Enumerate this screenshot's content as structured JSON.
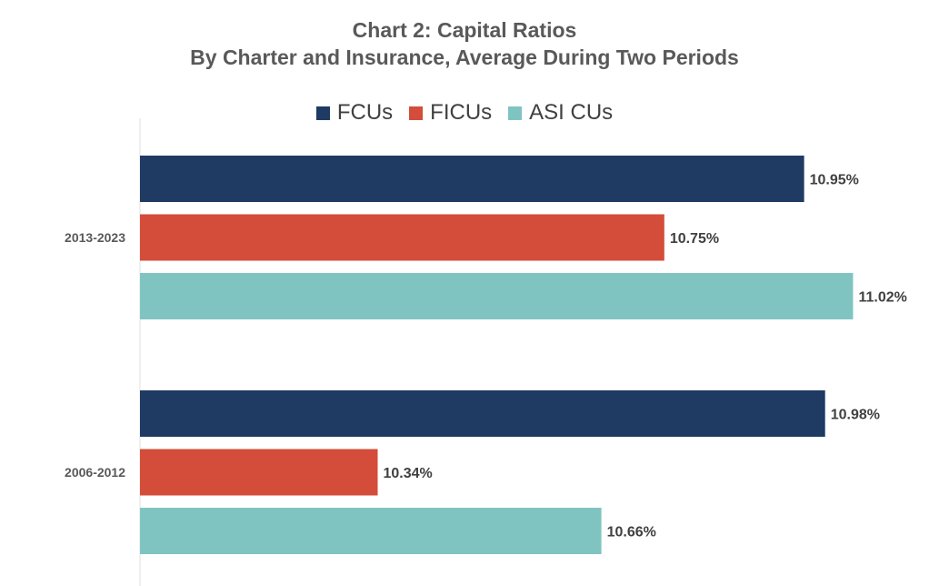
{
  "chart_data": {
    "type": "bar",
    "orientation": "horizontal",
    "title": "Chart 2: Capital Ratios",
    "subtitle": "By Charter and Insurance, Average During Two Periods",
    "categories": [
      "2013-2023",
      "2006-2012"
    ],
    "series": [
      {
        "name": "FCUs",
        "color": "#1f3a63",
        "values": [
          10.95,
          10.98
        ],
        "labels": [
          "10.95%",
          "10.98%"
        ]
      },
      {
        "name": "FICUs",
        "color": "#d44c3a",
        "values": [
          10.75,
          10.34
        ],
        "labels": [
          "10.75%",
          "10.34%"
        ]
      },
      {
        "name": "ASI CUs",
        "color": "#80c4c2",
        "values": [
          11.02,
          10.66
        ],
        "labels": [
          "11.02%",
          "10.66%"
        ]
      }
    ],
    "xlim": [
      10.0,
      11.1
    ],
    "grid": false,
    "legend_position": "top"
  }
}
